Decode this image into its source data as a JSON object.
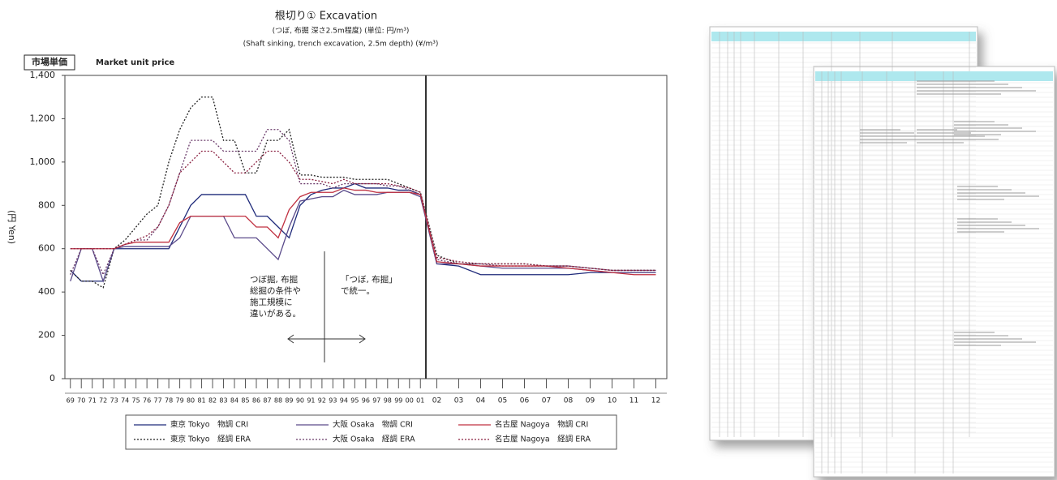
{
  "chart_data": {
    "type": "line",
    "title": "根切り① Excavation",
    "subtitle": [
      "(つぼ, 布掘 深さ2.5m程度) (単位: 円/m³)",
      "(Shaft sinking, trench excavation, 2.5m depth) (¥/m³)"
    ],
    "badge": "市場単価",
    "badge_caption": "Market unit price",
    "y_label": "(円 Yen)",
    "categories": [
      "69",
      "70",
      "71",
      "72",
      "73",
      "74",
      "75",
      "76",
      "77",
      "78",
      "79",
      "80",
      "81",
      "82",
      "83",
      "84",
      "85",
      "86",
      "87",
      "88",
      "89",
      "90",
      "91",
      "92",
      "93",
      "94",
      "95",
      "96",
      "97",
      "98",
      "99",
      "00",
      "01",
      "02",
      "03",
      "04",
      "05",
      "06",
      "07",
      "08",
      "09",
      "10",
      "11",
      "12"
    ],
    "ylim": [
      0,
      1400
    ],
    "yticks": [
      0,
      200,
      400,
      600,
      800,
      {
        "value": 1000,
        "label": "1,000"
      },
      {
        "value": 1200,
        "label": "1,200"
      },
      {
        "value": 1400,
        "label": "1,400"
      }
    ],
    "grid": false,
    "annotations": [
      {
        "lines": [
          "つぼ掘, 布掘",
          "総掘の条件や",
          "施工規模に",
          "違いがある。"
        ]
      },
      {
        "lines": [
          "「つぼ, 布掘」",
          "で統一。"
        ]
      }
    ],
    "series": [
      {
        "name": "東京 Tokyo　物調 CRI",
        "color": "#1f2a7a",
        "style": "solid",
        "values": [
          500,
          450,
          450,
          450,
          600,
          600,
          600,
          600,
          600,
          600,
          700,
          800,
          850,
          850,
          850,
          850,
          850,
          750,
          750,
          700,
          650,
          800,
          850,
          870,
          880,
          880,
          900,
          880,
          880,
          880,
          870,
          870,
          850,
          530,
          520,
          480,
          480,
          480,
          480,
          480,
          490,
          490,
          490,
          490
        ]
      },
      {
        "name": "東京 Tokyo　経調 ERA",
        "color": "#222222",
        "style": "dotted",
        "values": [
          500,
          450,
          450,
          420,
          600,
          640,
          700,
          760,
          800,
          1000,
          1150,
          1250,
          1300,
          1300,
          1100,
          1100,
          950,
          950,
          1100,
          1100,
          1150,
          940,
          940,
          930,
          930,
          930,
          920,
          920,
          920,
          920,
          900,
          880,
          860,
          570,
          530,
          530,
          530,
          530,
          520,
          520,
          510,
          500,
          500,
          500
        ]
      },
      {
        "name": "大阪 Osaka　物調 CRI",
        "color": "#5a4a8a",
        "style": "solid",
        "values": [
          450,
          600,
          600,
          450,
          600,
          610,
          610,
          610,
          610,
          610,
          650,
          750,
          750,
          750,
          750,
          650,
          650,
          650,
          600,
          550,
          700,
          820,
          830,
          840,
          840,
          870,
          850,
          850,
          850,
          860,
          860,
          860,
          840,
          530,
          530,
          520,
          510,
          510,
          510,
          510,
          500,
          490,
          490,
          490
        ]
      },
      {
        "name": "大阪 Osaka　経調 ERA",
        "color": "#6a3a6a",
        "style": "dotted",
        "values": [
          480,
          600,
          600,
          480,
          600,
          620,
          640,
          640,
          700,
          800,
          950,
          1100,
          1100,
          1100,
          1050,
          1050,
          1050,
          1050,
          1150,
          1150,
          1100,
          900,
          900,
          900,
          880,
          900,
          900,
          900,
          900,
          890,
          890,
          870,
          850,
          550,
          530,
          530,
          520,
          520,
          520,
          520,
          510,
          500,
          500,
          500
        ]
      },
      {
        "name": "名古屋 Nagoya　物調 CRI",
        "color": "#c03040",
        "style": "solid",
        "values": [
          600,
          600,
          600,
          600,
          600,
          620,
          630,
          630,
          630,
          630,
          720,
          750,
          750,
          750,
          750,
          750,
          750,
          700,
          700,
          650,
          780,
          840,
          860,
          860,
          860,
          880,
          870,
          870,
          860,
          860,
          860,
          860,
          850,
          540,
          530,
          520,
          520,
          520,
          520,
          510,
          500,
          490,
          480,
          480
        ]
      },
      {
        "name": "名古屋 Nagoya　経調 ERA",
        "color": "#8a2040",
        "style": "dotted",
        "values": [
          600,
          600,
          600,
          600,
          600,
          620,
          640,
          660,
          700,
          800,
          950,
          1000,
          1050,
          1050,
          1000,
          950,
          950,
          1000,
          1050,
          1050,
          1000,
          920,
          920,
          910,
          900,
          920,
          900,
          900,
          900,
          900,
          890,
          880,
          860,
          560,
          540,
          530,
          530,
          530,
          520,
          520,
          510,
          500,
          500,
          500
        ]
      }
    ]
  }
}
